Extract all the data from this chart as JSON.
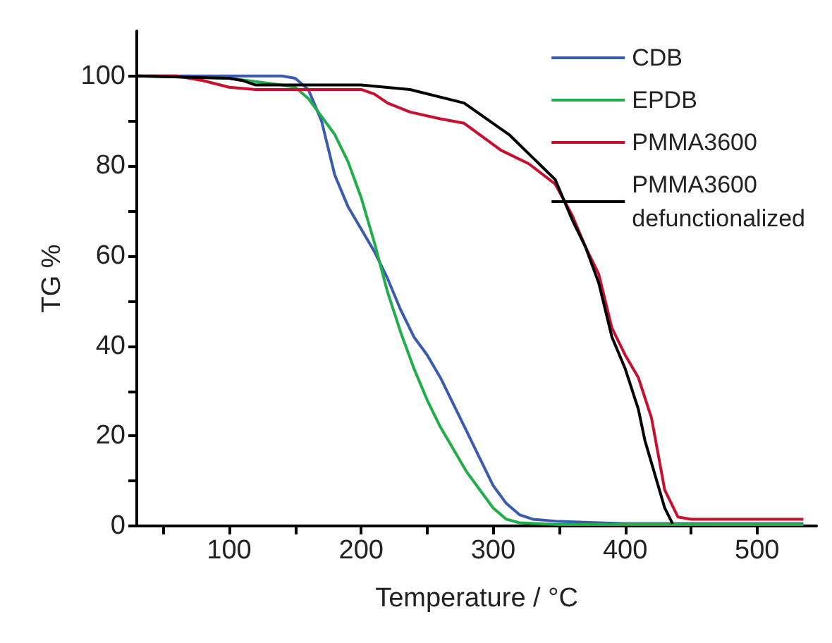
{
  "chart_data": {
    "type": "line",
    "xlabel": "Temperature / °C",
    "ylabel": "TG %",
    "xlim": [
      30,
      545
    ],
    "xticks": [
      {
        "value": 50,
        "label": null
      },
      100,
      {
        "value": 150,
        "label": null
      },
      200,
      {
        "value": 250,
        "label": null
      },
      300,
      {
        "value": 350,
        "label": null
      },
      400,
      {
        "value": 450,
        "label": null
      },
      500
    ],
    "ylim": [
      0,
      110
    ],
    "yticks": [
      0,
      {
        "value": 10,
        "label": null
      },
      20,
      {
        "value": 30,
        "label": null
      },
      40,
      {
        "value": 50,
        "label": null
      },
      60,
      {
        "value": 70,
        "label": null
      },
      80,
      {
        "value": 90,
        "label": null
      },
      100
    ],
    "grid": false,
    "legend": "top right",
    "marker": "none",
    "line_style": "solid",
    "series": [
      {
        "name": "CDB",
        "color": "#3a5bb0",
        "x": [
          30,
          100,
          140,
          150,
          160,
          170,
          180,
          190,
          200,
          210,
          220,
          230,
          240,
          250,
          260,
          270,
          280,
          290,
          300,
          310,
          320,
          330,
          350,
          400,
          535
        ],
        "values": [
          100,
          100,
          100,
          99.5,
          97,
          90,
          78,
          71,
          66,
          61,
          55,
          48,
          42,
          38,
          33,
          27,
          21,
          15,
          9,
          5,
          2.5,
          1.5,
          1,
          0.5,
          0.5
        ]
      },
      {
        "name": "EPDB",
        "color": "#1fae4a",
        "x": [
          30,
          100,
          140,
          150,
          160,
          170,
          180,
          190,
          200,
          210,
          220,
          230,
          240,
          250,
          260,
          270,
          280,
          290,
          300,
          310,
          320,
          350,
          535
        ],
        "values": [
          100,
          99.5,
          98,
          97.5,
          95,
          91,
          87,
          81,
          73,
          63,
          52,
          43,
          35,
          28,
          22,
          17,
          12,
          8,
          4,
          1.5,
          0.7,
          0.3,
          0.3
        ]
      },
      {
        "name": "PMMA3600",
        "color": "#c8102e",
        "x": [
          30,
          60,
          80,
          100,
          120,
          200,
          210,
          220,
          237,
          260,
          278,
          306,
          327,
          347,
          360,
          370,
          380,
          390,
          400,
          410,
          420,
          430,
          440,
          450,
          535
        ],
        "values": [
          100,
          100,
          99,
          97.5,
          97,
          97,
          96,
          94,
          92,
          90.5,
          89.5,
          83.5,
          80.5,
          76,
          69,
          62,
          56,
          44,
          38,
          33,
          24,
          8,
          2,
          1.5,
          1.5
        ]
      },
      {
        "name": "PMMA3600\ndefunctionalized",
        "color": "#000000",
        "x": [
          30,
          100,
          110,
          120,
          200,
          237,
          278,
          312,
          347,
          360,
          370,
          380,
          390,
          400,
          410,
          415,
          420,
          430,
          436
        ],
        "values": [
          100,
          99.5,
          99,
          98,
          98,
          97,
          94,
          87,
          77,
          68,
          62,
          54,
          42,
          35,
          26,
          19,
          14,
          4,
          0.5
        ]
      }
    ]
  }
}
